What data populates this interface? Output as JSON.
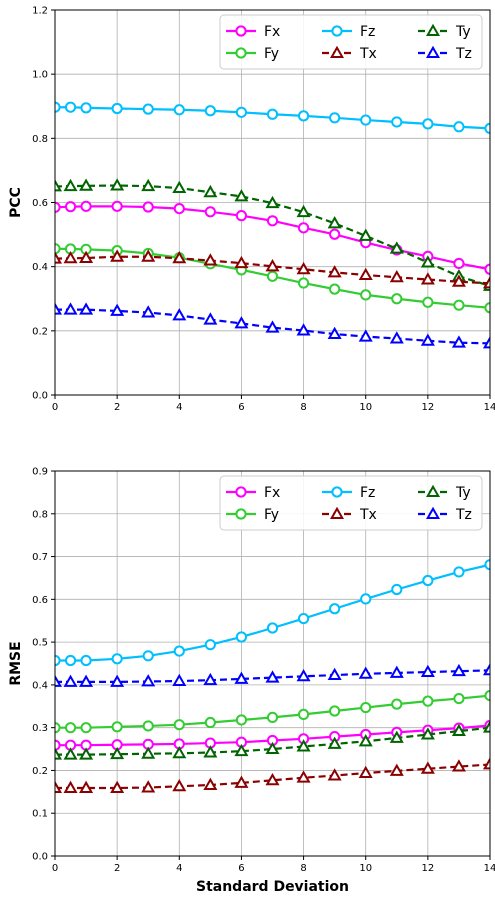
{
  "chart_data": [
    {
      "type": "line",
      "ylabel": "PCC",
      "xlabel": "",
      "xlim": [
        0,
        14
      ],
      "ylim": [
        0.0,
        1.2
      ],
      "xticks": [
        0,
        2,
        4,
        6,
        8,
        10,
        12,
        14
      ],
      "xtick_labels": [
        "0",
        "2",
        "4",
        "6",
        "8",
        "10",
        "12",
        "14"
      ],
      "yticks": [
        0.0,
        0.2,
        0.4,
        0.6,
        0.8,
        1.0,
        1.2
      ],
      "ytick_labels": [
        "0.0",
        "0.2",
        "0.4",
        "0.6",
        "0.8",
        "1.0",
        "1.2"
      ],
      "grid": true,
      "legend": "top-right",
      "x": [
        0,
        0.5,
        1,
        2,
        3,
        4,
        5,
        6,
        7,
        8,
        9,
        10,
        11,
        12,
        13,
        14
      ],
      "series": [
        {
          "name": "Fx",
          "color": "#ff00ff",
          "marker": "circle",
          "dashed": false,
          "values": [
            0.585,
            0.587,
            0.588,
            0.588,
            0.586,
            0.581,
            0.571,
            0.559,
            0.543,
            0.521,
            0.501,
            0.475,
            0.452,
            0.432,
            0.41,
            0.392
          ]
        },
        {
          "name": "Fz",
          "color": "#00bfff",
          "marker": "circle",
          "dashed": false,
          "values": [
            0.897,
            0.897,
            0.895,
            0.893,
            0.891,
            0.889,
            0.886,
            0.881,
            0.875,
            0.87,
            0.864,
            0.857,
            0.851,
            0.845,
            0.836,
            0.831
          ]
        },
        {
          "name": "Ty",
          "color": "#006400",
          "marker": "triangle",
          "dashed": true,
          "values": [
            0.65,
            0.651,
            0.652,
            0.653,
            0.651,
            0.645,
            0.632,
            0.619,
            0.598,
            0.57,
            0.535,
            0.496,
            0.456,
            0.413,
            0.37,
            0.34
          ]
        },
        {
          "name": "Fy",
          "color": "#33cc33",
          "marker": "circle",
          "dashed": false,
          "values": [
            0.456,
            0.455,
            0.454,
            0.45,
            0.441,
            0.428,
            0.409,
            0.39,
            0.37,
            0.349,
            0.33,
            0.312,
            0.3,
            0.289,
            0.28,
            0.272
          ]
        },
        {
          "name": "Tx",
          "color": "#8b0000",
          "marker": "triangle",
          "dashed": true,
          "values": [
            0.425,
            0.426,
            0.427,
            0.431,
            0.431,
            0.426,
            0.419,
            0.411,
            0.401,
            0.392,
            0.382,
            0.374,
            0.367,
            0.36,
            0.353,
            0.348
          ]
        },
        {
          "name": "Tz",
          "color": "#0000ff",
          "marker": "triangle",
          "dashed": true,
          "values": [
            0.266,
            0.266,
            0.266,
            0.262,
            0.257,
            0.248,
            0.235,
            0.223,
            0.21,
            0.201,
            0.19,
            0.182,
            0.176,
            0.169,
            0.163,
            0.161
          ]
        }
      ]
    },
    {
      "type": "line",
      "ylabel": "RMSE",
      "xlabel": "Standard Deviation",
      "xlim": [
        0,
        14
      ],
      "ylim": [
        0.0,
        0.9
      ],
      "xticks": [
        0,
        2,
        4,
        6,
        8,
        10,
        12,
        14
      ],
      "xtick_labels": [
        "0",
        "2",
        "4",
        "6",
        "8",
        "10",
        "12",
        "14"
      ],
      "yticks": [
        0.0,
        0.1,
        0.2,
        0.3,
        0.4,
        0.5,
        0.6,
        0.7,
        0.8,
        0.9
      ],
      "ytick_labels": [
        "0.0",
        "0.1",
        "0.2",
        "0.3",
        "0.4",
        "0.5",
        "0.6",
        "0.7",
        "0.8",
        "0.9"
      ],
      "grid": true,
      "legend": "top-right",
      "x": [
        0,
        0.5,
        1,
        2,
        3,
        4,
        5,
        6,
        7,
        8,
        9,
        10,
        11,
        12,
        13,
        14
      ],
      "series": [
        {
          "name": "Fx",
          "color": "#ff00ff",
          "marker": "circle",
          "dashed": false,
          "values": [
            0.259,
            0.259,
            0.259,
            0.26,
            0.261,
            0.262,
            0.264,
            0.266,
            0.27,
            0.274,
            0.279,
            0.284,
            0.289,
            0.294,
            0.299,
            0.305
          ]
        },
        {
          "name": "Fz",
          "color": "#00bfff",
          "marker": "circle",
          "dashed": false,
          "values": [
            0.457,
            0.457,
            0.457,
            0.461,
            0.468,
            0.479,
            0.494,
            0.512,
            0.533,
            0.555,
            0.578,
            0.601,
            0.623,
            0.644,
            0.664,
            0.681
          ]
        },
        {
          "name": "Ty",
          "color": "#006400",
          "marker": "triangle",
          "dashed": true,
          "values": [
            0.237,
            0.237,
            0.237,
            0.238,
            0.239,
            0.24,
            0.242,
            0.245,
            0.25,
            0.256,
            0.262,
            0.268,
            0.276,
            0.284,
            0.292,
            0.3
          ]
        },
        {
          "name": "Fy",
          "color": "#33cc33",
          "marker": "circle",
          "dashed": false,
          "values": [
            0.3,
            0.3,
            0.3,
            0.302,
            0.304,
            0.307,
            0.312,
            0.318,
            0.324,
            0.331,
            0.339,
            0.347,
            0.355,
            0.362,
            0.368,
            0.375
          ]
        },
        {
          "name": "Tx",
          "color": "#8b0000",
          "marker": "triangle",
          "dashed": true,
          "values": [
            0.159,
            0.159,
            0.159,
            0.159,
            0.16,
            0.163,
            0.166,
            0.171,
            0.177,
            0.183,
            0.188,
            0.194,
            0.199,
            0.204,
            0.209,
            0.214
          ]
        },
        {
          "name": "Tz",
          "color": "#0000ff",
          "marker": "triangle",
          "dashed": true,
          "values": [
            0.407,
            0.407,
            0.407,
            0.407,
            0.408,
            0.409,
            0.411,
            0.414,
            0.417,
            0.42,
            0.423,
            0.426,
            0.428,
            0.43,
            0.432,
            0.434
          ]
        }
      ]
    }
  ]
}
